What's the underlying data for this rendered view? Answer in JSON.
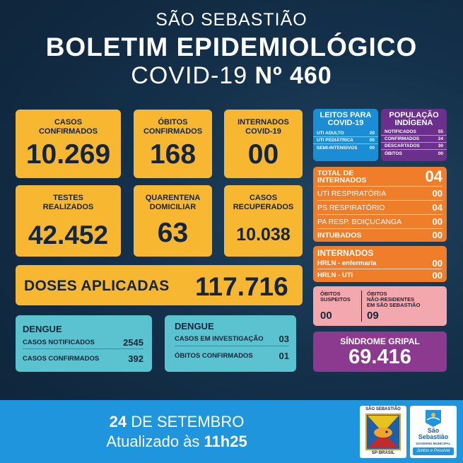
{
  "header": {
    "city": "SÃO SEBASTIÃO",
    "title": "BOLETIM EPIDEMIOLÓGICO",
    "subtitle_prefix": "COVID-19 ",
    "subtitle_number": "Nº 460"
  },
  "cards": {
    "casos": {
      "label": "CASOS\nCONFIRMADOS",
      "value": "10.269"
    },
    "obitos": {
      "label": "ÓBITOS\nCONFIRMADOS",
      "value": "168"
    },
    "internados": {
      "label": "INTERNADOS\nCOVID-19",
      "value": "00"
    },
    "testes": {
      "label": "TESTES\nREALIZADOS",
      "value": "42.452"
    },
    "quarentena": {
      "label": "QUARENTENA\nDOMICILIAR",
      "value": "63"
    },
    "recuperados": {
      "label": "CASOS\nRECUPERADOS",
      "value": "10.038"
    }
  },
  "doses": {
    "label": "DOSES APLICADAS",
    "value": "117.716"
  },
  "dengue1": {
    "title": "DENGUE",
    "rows": [
      {
        "label": "CASOS NOTIFICADOS",
        "value": "2545"
      },
      {
        "label": "CASOS CONFIRMADOS",
        "value": "392"
      }
    ]
  },
  "dengue2": {
    "title": "DENGUE",
    "rows": [
      {
        "label": "CASOS EM INVESTIGAÇÃO",
        "value": "03"
      },
      {
        "label": "ÓBITOS CONFIRMADOS",
        "value": "01"
      }
    ]
  },
  "leitos": {
    "title": "LEITOS PARA\nCOVID-19",
    "rows": [
      {
        "label": "UTI ADULTO",
        "value": "20"
      },
      {
        "label": "UTI PEDIÁTRICA",
        "value": "00"
      },
      {
        "label": "SEMI-INTENSIVOS",
        "value": "00"
      }
    ]
  },
  "indigena": {
    "title": "POPULAÇÃO\nINDÍGENA",
    "rows": [
      {
        "label": "NOTIFICADOS",
        "value": "55"
      },
      {
        "label": "CONFIRMADOS",
        "value": "24"
      },
      {
        "label": "DESCARTADOS",
        "value": "30"
      },
      {
        "label": "ÓBITOS",
        "value": "00"
      }
    ]
  },
  "internados_total": {
    "title": "TOTAL DE\nINTERNADOS",
    "total": "04",
    "rows": [
      {
        "label": "UTI RESPIRATÓRIA",
        "value": "00"
      },
      {
        "label": "PS RESPIRATÓRIO",
        "value": "04"
      },
      {
        "label": "PA RESP. BOIÇUCANGA",
        "value": "00"
      },
      {
        "label": "INTUBADOS",
        "value": "00"
      }
    ]
  },
  "hrln": {
    "title": "INTERNADOS",
    "rows": [
      {
        "label": "HRLN - enfermaria",
        "value": "00"
      },
      {
        "label": "HRLN - UTI",
        "value": "00"
      }
    ]
  },
  "suspeitos": {
    "left_label": "ÓBITOS\nSUSPEITOS",
    "left_value": "00",
    "right_label": "ÓBITOS\nNÃO-RESIDENTES\nEM SÃO SEBASTIÃO",
    "right_value": "09"
  },
  "sindrome": {
    "label": "SÍNDROME GRIPAL",
    "value": "69.416"
  },
  "footer": {
    "date_num": "24",
    "date_rest": " DE SETEMBRO",
    "updated_prefix": "Atualizado às ",
    "updated_time": "11h25"
  },
  "logos": {
    "seal_top": "SÃO SEBASTIÃO",
    "seal_bottom": "SP·BRASIL",
    "city_name_1": "São",
    "city_name_2": "Sebastião",
    "gov_label": "GOVERNO MUNICIPAL",
    "slogan": "Juntos e Possível"
  }
}
